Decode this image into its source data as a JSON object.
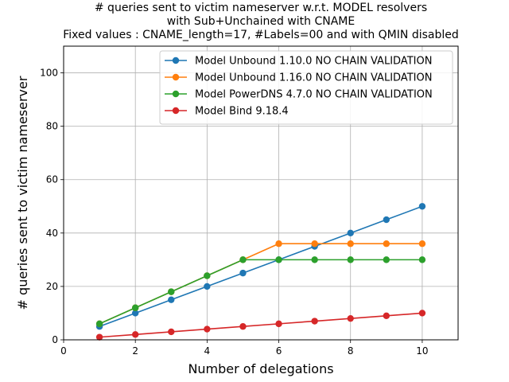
{
  "chart_data": {
    "type": "line",
    "title": [
      "# queries sent to victim nameserver w.r.t. MODEL resolvers",
      "with Sub+Unchained with CNAME",
      "Fixed values : CNAME_length=17, #Labels=00 and with QMIN disabled"
    ],
    "xlabel": "Number of delegations",
    "ylabel": "# queries sent to victim nameserver",
    "xlim": [
      0,
      11
    ],
    "ylim": [
      0,
      110
    ],
    "xticks": [
      0,
      2,
      4,
      6,
      8,
      10
    ],
    "yticks": [
      0,
      20,
      40,
      60,
      80,
      100
    ],
    "grid": true,
    "legend_position": "top-right",
    "x": [
      1,
      2,
      3,
      4,
      5,
      6,
      7,
      8,
      9,
      10
    ],
    "series": [
      {
        "name": "Model Unbound 1.10.0 NO CHAIN VALIDATION",
        "color": "#1f77b4",
        "values": [
          5,
          10,
          15,
          20,
          25,
          30,
          35,
          40,
          45,
          50
        ]
      },
      {
        "name": "Model Unbound 1.16.0 NO CHAIN VALIDATION",
        "color": "#ff7f0e",
        "values": [
          6,
          12,
          18,
          24,
          30,
          36,
          36,
          36,
          36,
          36
        ]
      },
      {
        "name": "Model PowerDNS 4.7.0 NO CHAIN VALIDATION",
        "color": "#2ca02c",
        "values": [
          6,
          12,
          18,
          24,
          30,
          30,
          30,
          30,
          30,
          30
        ]
      },
      {
        "name": "Model Bind 9.18.4",
        "color": "#d62728",
        "values": [
          1,
          2,
          3,
          4,
          5,
          6,
          7,
          8,
          9,
          10
        ]
      }
    ]
  }
}
